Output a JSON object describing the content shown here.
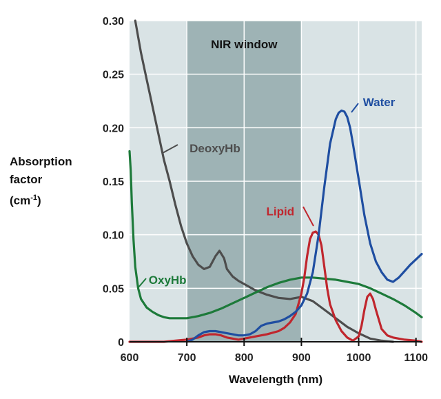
{
  "chart_data": {
    "type": "line",
    "title": "",
    "xlabel": "Wavelength (nm)",
    "ylabel": {
      "line1": "Absorption",
      "line2": "factor",
      "line3_prefix": "(cm",
      "line3_sup": "-1",
      "line3_suffix": ")"
    },
    "xlim": [
      600,
      1110
    ],
    "ylim": [
      0,
      0.3
    ],
    "x_ticks": [
      600,
      700,
      800,
      900,
      1000,
      1100
    ],
    "x_tick_labels": [
      "600",
      "700",
      "800",
      "900",
      "1000",
      "1100"
    ],
    "y_ticks": [
      0,
      0.05,
      0.1,
      0.15,
      0.2,
      0.25,
      0.3
    ],
    "y_tick_labels": [
      "0",
      "0.05",
      "0.10",
      "0.15",
      "0.20",
      "0.25",
      "0.30"
    ],
    "grid": true,
    "background_color": "#d9e3e5",
    "nir_window": {
      "label": "NIR window",
      "x_range": [
        700,
        900
      ],
      "color": "#9eb3b5"
    },
    "series": [
      {
        "name": "DeoxyHb",
        "color": "#4d4d4d",
        "label_at": [
          700,
          0.181
        ],
        "x": [
          610,
          620,
          630,
          640,
          650,
          660,
          670,
          680,
          690,
          700,
          710,
          720,
          730,
          740,
          750,
          757,
          765,
          770,
          780,
          790,
          800,
          820,
          840,
          860,
          880,
          900,
          920,
          940,
          960,
          980,
          1000,
          1020,
          1040,
          1060
        ],
        "y": [
          0.3,
          0.27,
          0.245,
          0.22,
          0.195,
          0.17,
          0.15,
          0.128,
          0.108,
          0.092,
          0.08,
          0.072,
          0.068,
          0.07,
          0.08,
          0.085,
          0.078,
          0.068,
          0.061,
          0.057,
          0.054,
          0.048,
          0.044,
          0.041,
          0.04,
          0.042,
          0.038,
          0.03,
          0.022,
          0.014,
          0.008,
          0.003,
          0.001,
          0.0
        ]
      },
      {
        "name": "OxyHb",
        "color": "#1d7a3a",
        "label_at": [
          631,
          0.058
        ],
        "x": [
          600,
          602,
          604,
          607,
          610,
          615,
          620,
          630,
          640,
          650,
          660,
          670,
          680,
          690,
          700,
          720,
          740,
          760,
          780,
          800,
          820,
          840,
          860,
          880,
          900,
          920,
          940,
          960,
          980,
          1000,
          1020,
          1040,
          1060,
          1080,
          1100,
          1110
        ],
        "y": [
          0.178,
          0.16,
          0.13,
          0.095,
          0.07,
          0.05,
          0.04,
          0.032,
          0.028,
          0.025,
          0.023,
          0.022,
          0.022,
          0.022,
          0.022,
          0.024,
          0.027,
          0.031,
          0.036,
          0.041,
          0.046,
          0.051,
          0.055,
          0.058,
          0.06,
          0.06,
          0.059,
          0.058,
          0.056,
          0.054,
          0.05,
          0.045,
          0.04,
          0.034,
          0.027,
          0.023
        ]
      },
      {
        "name": "Lipid",
        "color": "#c0262d",
        "label_at": [
          890,
          0.122
        ],
        "x": [
          600,
          620,
          640,
          660,
          680,
          700,
          710,
          720,
          730,
          740,
          750,
          760,
          770,
          780,
          790,
          800,
          810,
          820,
          840,
          860,
          870,
          880,
          890,
          900,
          905,
          910,
          915,
          920,
          925,
          930,
          935,
          940,
          945,
          950,
          960,
          970,
          980,
          990,
          1000,
          1005,
          1010,
          1015,
          1020,
          1025,
          1030,
          1040,
          1050,
          1060,
          1080,
          1100,
          1110
        ],
        "y": [
          0.0,
          0.0,
          0.0,
          0.0,
          0.001,
          0.002,
          0.003,
          0.004,
          0.006,
          0.007,
          0.007,
          0.006,
          0.004,
          0.003,
          0.002,
          0.003,
          0.004,
          0.005,
          0.007,
          0.01,
          0.013,
          0.018,
          0.026,
          0.045,
          0.06,
          0.08,
          0.096,
          0.102,
          0.103,
          0.1,
          0.09,
          0.07,
          0.05,
          0.035,
          0.02,
          0.01,
          0.004,
          0.001,
          0.005,
          0.015,
          0.03,
          0.042,
          0.045,
          0.04,
          0.03,
          0.012,
          0.006,
          0.004,
          0.002,
          0.001,
          0.0
        ]
      },
      {
        "name": "Water",
        "color": "#1f4ea1",
        "label_at": [
          1005,
          0.224
        ],
        "x": [
          700,
          710,
          720,
          730,
          740,
          750,
          760,
          770,
          780,
          790,
          800,
          810,
          820,
          830,
          840,
          850,
          860,
          870,
          880,
          890,
          900,
          910,
          920,
          930,
          940,
          950,
          960,
          965,
          970,
          975,
          980,
          985,
          990,
          1000,
          1010,
          1020,
          1030,
          1040,
          1050,
          1060,
          1070,
          1080,
          1090,
          1100,
          1110
        ],
        "y": [
          0.0,
          0.002,
          0.006,
          0.009,
          0.01,
          0.01,
          0.009,
          0.008,
          0.007,
          0.006,
          0.006,
          0.007,
          0.01,
          0.015,
          0.017,
          0.018,
          0.019,
          0.021,
          0.024,
          0.028,
          0.034,
          0.045,
          0.065,
          0.1,
          0.145,
          0.185,
          0.208,
          0.214,
          0.216,
          0.215,
          0.21,
          0.2,
          0.185,
          0.152,
          0.118,
          0.092,
          0.075,
          0.065,
          0.058,
          0.056,
          0.06,
          0.066,
          0.072,
          0.077,
          0.082
        ]
      }
    ]
  }
}
